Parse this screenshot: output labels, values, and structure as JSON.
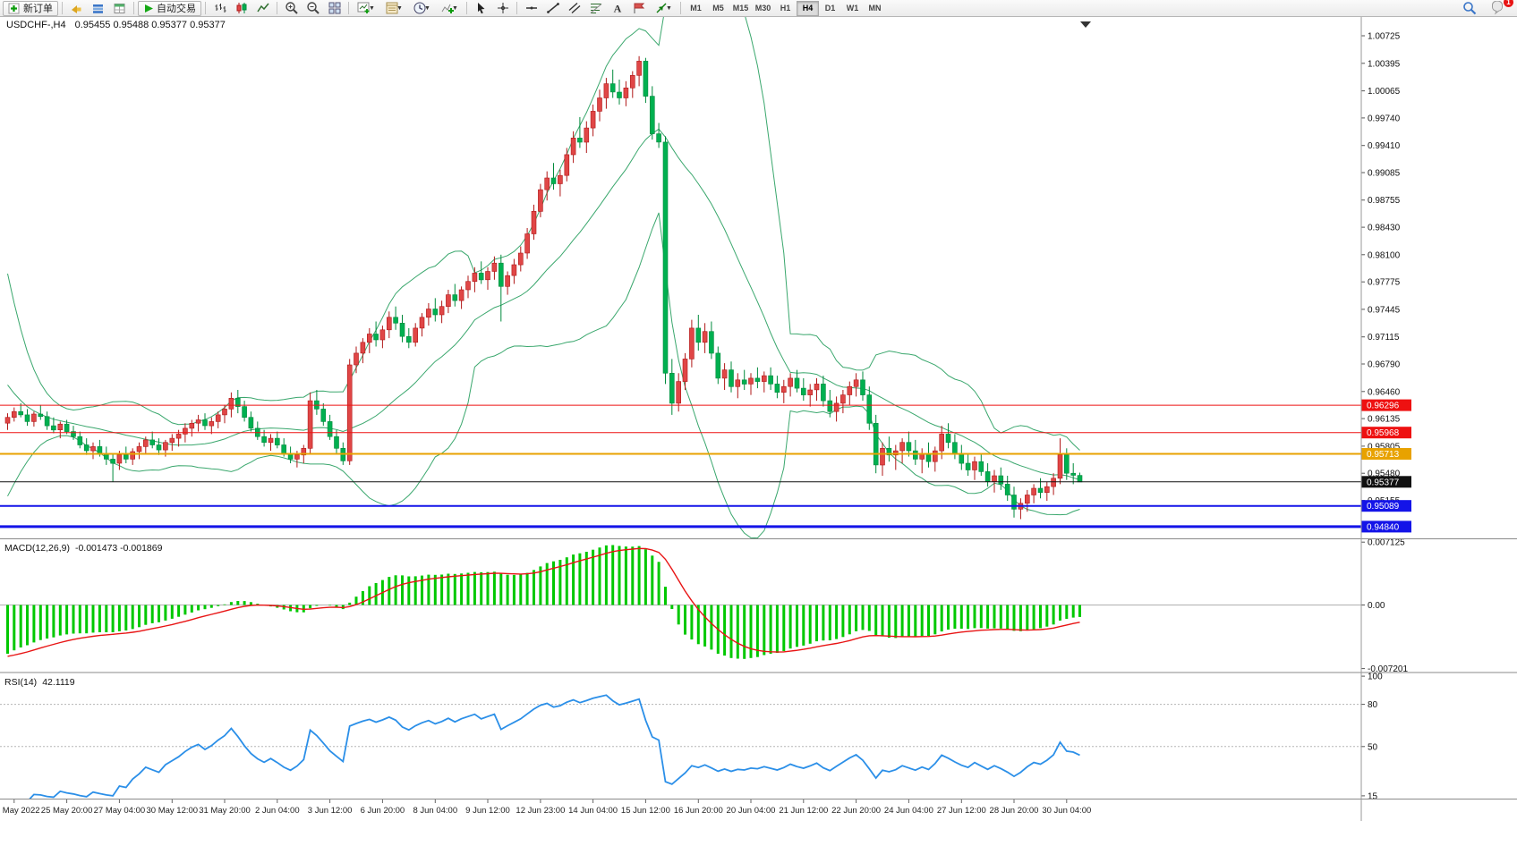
{
  "toolbar": {
    "new_order_label": "新订单",
    "auto_trading_label": "自动交易",
    "timeframes": [
      "M1",
      "M5",
      "M15",
      "M30",
      "H1",
      "H4",
      "D1",
      "W1",
      "MN"
    ],
    "active_timeframe": "H4",
    "notification_count": "1",
    "icons": [
      "new-order-icon",
      "megaphone-icon",
      "market-watch-icon",
      "data-window-icon",
      "auto-trading-icon",
      "bar-chart-icon",
      "candlestick-icon",
      "line-chart-icon",
      "zoom-in-icon",
      "zoom-out-icon",
      "tile-windows-icon",
      "new-chart-icon",
      "profiles-icon",
      "period-icon",
      "indicators-icon",
      "cursor-icon",
      "crosshair-icon",
      "horizontal-line-icon",
      "trendline-icon",
      "channel-icon",
      "fibonacci-icon",
      "text-icon",
      "label-icon",
      "arrows-icon",
      "search-icon",
      "notifications-icon"
    ]
  },
  "chart": {
    "title": "USDCHF-,H4",
    "ohlc_text": "0.95455 0.95488 0.95377 0.95377"
  },
  "chart_data": {
    "type": "candlestick",
    "symbol": "USDCHF-",
    "timeframe": "H4",
    "background": "#ffffff",
    "grid": false,
    "ylim": [
      0.947,
      1.0095
    ],
    "up_color": "#e04646",
    "up_border": "#b01818",
    "down_color": "#00b050",
    "down_border": "#008a3c",
    "band_color": "#3aa76d",
    "price_axis_ticks": [
      "1.00725",
      "1.00395",
      "1.00065",
      "0.99740",
      "0.99410",
      "0.99085",
      "0.98755",
      "0.98430",
      "0.98100",
      "0.97775",
      "0.97445",
      "0.97115",
      "0.96790",
      "0.96460",
      "0.96135",
      "0.95805",
      "0.95480",
      "0.95155"
    ],
    "hlines": [
      {
        "price": 0.96296,
        "label": "0.96296",
        "color": "#ee1111",
        "width": 1
      },
      {
        "price": 0.95968,
        "label": "0.95968",
        "color": "#ee1111",
        "width": 1
      },
      {
        "price": 0.95713,
        "label": "0.95713",
        "color": "#e8a200",
        "width": 2
      },
      {
        "price": 0.95377,
        "label": "0.95377",
        "color": "#111111",
        "width": 1
      },
      {
        "price": 0.95089,
        "label": "0.95089",
        "color": "#1414e8",
        "width": 2
      },
      {
        "price": 0.9484,
        "label": "0.94840",
        "color": "#1414e8",
        "width": 3
      }
    ],
    "bollinger": {
      "period": 20,
      "deviation": 2
    },
    "warmup_closes": [
      0.9858,
      0.9825,
      0.979,
      0.9755,
      0.9722,
      0.9695,
      0.9672,
      0.9655,
      0.9642,
      0.9632,
      0.9625,
      0.9618,
      0.9612,
      0.9608,
      0.9605,
      0.9602,
      0.96,
      0.96,
      0.9602,
      0.9604
    ],
    "candles": [
      [
        0.9608,
        0.962,
        0.96,
        0.9615
      ],
      [
        0.9615,
        0.9627,
        0.961,
        0.9622
      ],
      [
        0.9622,
        0.9632,
        0.9615,
        0.9618
      ],
      [
        0.9618,
        0.9625,
        0.9605,
        0.961
      ],
      [
        0.961,
        0.9622,
        0.9604,
        0.9619
      ],
      [
        0.9619,
        0.963,
        0.9612,
        0.9616
      ],
      [
        0.9616,
        0.9622,
        0.96,
        0.9605
      ],
      [
        0.9605,
        0.9615,
        0.9596,
        0.96
      ],
      [
        0.96,
        0.961,
        0.959,
        0.9607
      ],
      [
        0.9607,
        0.9612,
        0.9595,
        0.9598
      ],
      [
        0.9598,
        0.9605,
        0.9588,
        0.9592
      ],
      [
        0.9592,
        0.9598,
        0.9578,
        0.9582
      ],
      [
        0.9582,
        0.959,
        0.957,
        0.9575
      ],
      [
        0.9575,
        0.9585,
        0.9565,
        0.958
      ],
      [
        0.958,
        0.9588,
        0.9568,
        0.9572
      ],
      [
        0.9572,
        0.958,
        0.9558,
        0.9565
      ],
      [
        0.9565,
        0.9572,
        0.9538,
        0.956
      ],
      [
        0.956,
        0.9575,
        0.9552,
        0.957
      ],
      [
        0.957,
        0.958,
        0.956,
        0.9565
      ],
      [
        0.9565,
        0.9578,
        0.9558,
        0.9574
      ],
      [
        0.9574,
        0.9585,
        0.9565,
        0.958
      ],
      [
        0.958,
        0.9592,
        0.9572,
        0.9588
      ],
      [
        0.9588,
        0.9598,
        0.9578,
        0.9582
      ],
      [
        0.9582,
        0.959,
        0.957,
        0.9576
      ],
      [
        0.9576,
        0.9588,
        0.9568,
        0.9585
      ],
      [
        0.9585,
        0.9595,
        0.9575,
        0.959
      ],
      [
        0.959,
        0.96,
        0.958,
        0.9595
      ],
      [
        0.9595,
        0.9608,
        0.9585,
        0.9602
      ],
      [
        0.9602,
        0.9612,
        0.9592,
        0.9608
      ],
      [
        0.9608,
        0.9618,
        0.9598,
        0.9612
      ],
      [
        0.9612,
        0.962,
        0.96,
        0.9605
      ],
      [
        0.9605,
        0.9615,
        0.9595,
        0.961
      ],
      [
        0.961,
        0.9622,
        0.9602,
        0.9618
      ],
      [
        0.9618,
        0.963,
        0.9608,
        0.9625
      ],
      [
        0.9625,
        0.9645,
        0.9615,
        0.9638
      ],
      [
        0.9638,
        0.9648,
        0.962,
        0.9628
      ],
      [
        0.9628,
        0.9635,
        0.961,
        0.9615
      ],
      [
        0.9615,
        0.9622,
        0.9598,
        0.9602
      ],
      [
        0.9602,
        0.961,
        0.9588,
        0.9592
      ],
      [
        0.9592,
        0.96,
        0.958,
        0.9585
      ],
      [
        0.9585,
        0.9595,
        0.9575,
        0.959
      ],
      [
        0.959,
        0.9598,
        0.9578,
        0.9582
      ],
      [
        0.9582,
        0.959,
        0.9568,
        0.9572
      ],
      [
        0.9572,
        0.958,
        0.956,
        0.9565
      ],
      [
        0.9565,
        0.9575,
        0.9555,
        0.957
      ],
      [
        0.957,
        0.9582,
        0.956,
        0.9578
      ],
      [
        0.9578,
        0.9645,
        0.9572,
        0.9635
      ],
      [
        0.9635,
        0.9648,
        0.9618,
        0.9625
      ],
      [
        0.9625,
        0.9632,
        0.9605,
        0.961
      ],
      [
        0.961,
        0.9618,
        0.9588,
        0.9592
      ],
      [
        0.9592,
        0.96,
        0.9572,
        0.9578
      ],
      [
        0.9578,
        0.9585,
        0.9558,
        0.9563
      ],
      [
        0.9563,
        0.9685,
        0.9558,
        0.9678
      ],
      [
        0.9678,
        0.97,
        0.9668,
        0.9692
      ],
      [
        0.9692,
        0.971,
        0.968,
        0.9705
      ],
      [
        0.9705,
        0.9722,
        0.9692,
        0.9715
      ],
      [
        0.9715,
        0.973,
        0.97,
        0.9708
      ],
      [
        0.9708,
        0.9725,
        0.9698,
        0.972
      ],
      [
        0.972,
        0.9742,
        0.971,
        0.9735
      ],
      [
        0.9735,
        0.9748,
        0.972,
        0.9728
      ],
      [
        0.9728,
        0.9738,
        0.9705,
        0.9712
      ],
      [
        0.9712,
        0.9722,
        0.9698,
        0.9705
      ],
      [
        0.9705,
        0.9728,
        0.97,
        0.9722
      ],
      [
        0.9722,
        0.974,
        0.9712,
        0.9735
      ],
      [
        0.9735,
        0.9752,
        0.9725,
        0.9745
      ],
      [
        0.9745,
        0.9758,
        0.973,
        0.9738
      ],
      [
        0.9738,
        0.9755,
        0.9728,
        0.9748
      ],
      [
        0.9748,
        0.9768,
        0.974,
        0.9762
      ],
      [
        0.9762,
        0.9775,
        0.9748,
        0.9755
      ],
      [
        0.9755,
        0.9772,
        0.9745,
        0.9768
      ],
      [
        0.9768,
        0.9785,
        0.9758,
        0.9778
      ],
      [
        0.9778,
        0.9795,
        0.9765,
        0.9788
      ],
      [
        0.9788,
        0.9802,
        0.9775,
        0.978
      ],
      [
        0.978,
        0.9795,
        0.9768,
        0.979
      ],
      [
        0.979,
        0.9808,
        0.978,
        0.98
      ],
      [
        0.98,
        0.981,
        0.973,
        0.9772
      ],
      [
        0.9772,
        0.979,
        0.9762,
        0.9785
      ],
      [
        0.9785,
        0.9805,
        0.9775,
        0.9798
      ],
      [
        0.9798,
        0.982,
        0.979,
        0.9812
      ],
      [
        0.9812,
        0.9842,
        0.9805,
        0.9835
      ],
      [
        0.9835,
        0.987,
        0.9828,
        0.9862
      ],
      [
        0.9862,
        0.9895,
        0.9855,
        0.9888
      ],
      [
        0.9888,
        0.991,
        0.9875,
        0.9902
      ],
      [
        0.9902,
        0.992,
        0.9888,
        0.9895
      ],
      [
        0.9895,
        0.9912,
        0.988,
        0.9905
      ],
      [
        0.9905,
        0.9938,
        0.9898,
        0.993
      ],
      [
        0.993,
        0.9958,
        0.992,
        0.995
      ],
      [
        0.995,
        0.9975,
        0.9938,
        0.9945
      ],
      [
        0.9945,
        0.997,
        0.9932,
        0.9962
      ],
      [
        0.9962,
        0.999,
        0.9952,
        0.9982
      ],
      [
        0.9982,
        1.0008,
        0.997,
        0.9998
      ],
      [
        0.9998,
        1.0022,
        0.9985,
        1.0015
      ],
      [
        1.0015,
        1.0032,
        0.9998,
        1.0005
      ],
      [
        1.0005,
        1.002,
        0.999,
        0.9998
      ],
      [
        0.9998,
        1.0018,
        0.9988,
        1.001
      ],
      [
        1.001,
        1.003,
        0.9998,
        1.0025
      ],
      [
        1.0025,
        1.0048,
        1.0012,
        1.0042
      ],
      [
        1.0042,
        1.0046,
        0.9992,
        1.0
      ],
      [
        1.0,
        1.0012,
        0.9948,
        0.9955
      ],
      [
        0.9955,
        0.9968,
        0.9938,
        0.9945
      ],
      [
        0.9945,
        0.9952,
        0.9655,
        0.9668
      ],
      [
        0.9668,
        0.9685,
        0.9618,
        0.9632
      ],
      [
        0.9632,
        0.9668,
        0.9622,
        0.9658
      ],
      [
        0.9658,
        0.9692,
        0.9648,
        0.9685
      ],
      [
        0.9685,
        0.9732,
        0.9675,
        0.9722
      ],
      [
        0.9722,
        0.9738,
        0.9695,
        0.9705
      ],
      [
        0.9705,
        0.9728,
        0.9692,
        0.9718
      ],
      [
        0.9718,
        0.973,
        0.9685,
        0.9692
      ],
      [
        0.9692,
        0.97,
        0.9655,
        0.9662
      ],
      [
        0.9662,
        0.968,
        0.9648,
        0.9672
      ],
      [
        0.9672,
        0.9682,
        0.9645,
        0.9652
      ],
      [
        0.9652,
        0.9668,
        0.9638,
        0.966
      ],
      [
        0.966,
        0.9672,
        0.9648,
        0.9655
      ],
      [
        0.9655,
        0.9668,
        0.9642,
        0.9662
      ],
      [
        0.9662,
        0.9675,
        0.965,
        0.9658
      ],
      [
        0.9658,
        0.967,
        0.9645,
        0.9665
      ],
      [
        0.9665,
        0.9675,
        0.9648,
        0.9655
      ],
      [
        0.9655,
        0.9665,
        0.9638,
        0.9645
      ],
      [
        0.9645,
        0.966,
        0.9632,
        0.9652
      ],
      [
        0.9652,
        0.9668,
        0.964,
        0.9662
      ],
      [
        0.9662,
        0.9672,
        0.9645,
        0.965
      ],
      [
        0.965,
        0.9662,
        0.9635,
        0.9642
      ],
      [
        0.9642,
        0.9655,
        0.9628,
        0.9648
      ],
      [
        0.9648,
        0.9662,
        0.9635,
        0.9655
      ],
      [
        0.9655,
        0.9665,
        0.9628,
        0.9635
      ],
      [
        0.9635,
        0.9648,
        0.9615,
        0.9622
      ],
      [
        0.9622,
        0.964,
        0.961,
        0.9632
      ],
      [
        0.9632,
        0.9648,
        0.962,
        0.9642
      ],
      [
        0.9642,
        0.9658,
        0.963,
        0.9652
      ],
      [
        0.9652,
        0.9668,
        0.964,
        0.966
      ],
      [
        0.966,
        0.967,
        0.9635,
        0.9642
      ],
      [
        0.9642,
        0.9652,
        0.96,
        0.9608
      ],
      [
        0.9608,
        0.9618,
        0.9548,
        0.9558
      ],
      [
        0.9558,
        0.9585,
        0.9545,
        0.9578
      ],
      [
        0.9578,
        0.9592,
        0.9562,
        0.957
      ],
      [
        0.957,
        0.9582,
        0.9552,
        0.9575
      ],
      [
        0.9575,
        0.959,
        0.956,
        0.9585
      ],
      [
        0.9585,
        0.9598,
        0.9568,
        0.9575
      ],
      [
        0.9575,
        0.9588,
        0.9558,
        0.9565
      ],
      [
        0.9565,
        0.9578,
        0.9548,
        0.9572
      ],
      [
        0.9572,
        0.9585,
        0.9555,
        0.9562
      ],
      [
        0.9562,
        0.958,
        0.955,
        0.9575
      ],
      [
        0.9575,
        0.9605,
        0.9565,
        0.9595
      ],
      [
        0.9595,
        0.9608,
        0.9578,
        0.9585
      ],
      [
        0.9585,
        0.9595,
        0.9565,
        0.9572
      ],
      [
        0.9572,
        0.9582,
        0.9552,
        0.956
      ],
      [
        0.956,
        0.9572,
        0.9545,
        0.9552
      ],
      [
        0.9552,
        0.9568,
        0.954,
        0.9562
      ],
      [
        0.9562,
        0.9572,
        0.9545,
        0.955
      ],
      [
        0.955,
        0.956,
        0.9532,
        0.9538
      ],
      [
        0.9538,
        0.9552,
        0.9525,
        0.9545
      ],
      [
        0.9545,
        0.9555,
        0.9528,
        0.9535
      ],
      [
        0.9535,
        0.9545,
        0.9515,
        0.9522
      ],
      [
        0.9522,
        0.9532,
        0.9495,
        0.9505
      ],
      [
        0.9505,
        0.9518,
        0.9493,
        0.9512
      ],
      [
        0.9512,
        0.9528,
        0.9502,
        0.9522
      ],
      [
        0.9522,
        0.9535,
        0.9512,
        0.953
      ],
      [
        0.953,
        0.9542,
        0.9518,
        0.9525
      ],
      [
        0.9525,
        0.9538,
        0.9515,
        0.9532
      ],
      [
        0.9532,
        0.9548,
        0.9522,
        0.9542
      ],
      [
        0.9542,
        0.959,
        0.9535,
        0.957
      ],
      [
        0.957,
        0.9578,
        0.954,
        0.9548
      ],
      [
        0.9548,
        0.956,
        0.9535,
        0.95455
      ],
      [
        0.95455,
        0.95488,
        0.95377,
        0.95377
      ]
    ],
    "macd": {
      "label": "MACD(12,26,9)",
      "values_text": "-0.001473 -0.001869",
      "params": [
        12,
        26,
        9
      ],
      "axis": [
        "0.007125",
        "0.00",
        "-0.007201"
      ],
      "bar_color": "#00c800",
      "signal_color": "#e81414"
    },
    "rsi": {
      "label": "RSI(14)",
      "value_text": "42.1119",
      "period": 14,
      "axis": [
        "100",
        "80",
        "50",
        "15"
      ],
      "levels": [
        80,
        50
      ],
      "line_color": "#2b8fe8"
    },
    "time_axis": {
      "start_index": 1,
      "step": 8,
      "labels": [
        "May 2022",
        "25 May 20:00",
        "27 May 04:00",
        "30 May 12:00",
        "31 May 20:00",
        "2 Jun 04:00",
        "3 Jun 12:00",
        "6 Jun 20:00",
        "8 Jun 04:00",
        "9 Jun 12:00",
        "12 Jun 23:00",
        "14 Jun 04:00",
        "15 Jun 12:00",
        "16 Jun 20:00",
        "20 Jun 04:00",
        "21 Jun 12:00",
        "22 Jun 20:00",
        "24 Jun 04:00",
        "27 Jun 12:00",
        "28 Jun 20:00",
        "30 Jun 04:00"
      ]
    }
  }
}
